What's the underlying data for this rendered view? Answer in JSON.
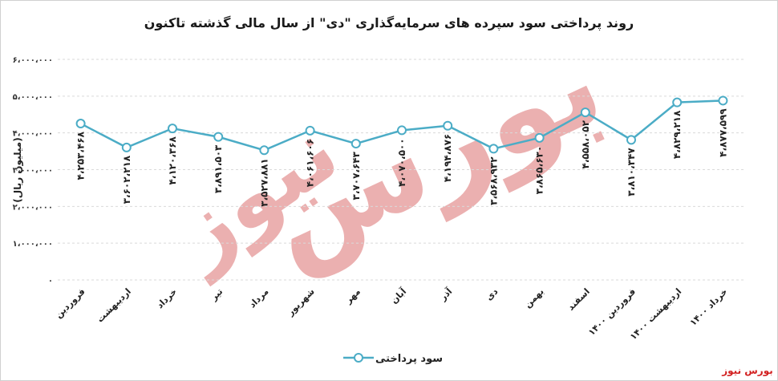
{
  "chart_data": {
    "type": "line",
    "title": "روند پرداختی سود سپرده های سرمایه‌گذاری \"دی\" از سال مالی گذشته تاکنون",
    "ylabel": "(میلیون ریال)",
    "ylim": [
      0,
      6000000
    ],
    "y_ticks": [
      0,
      1000000,
      2000000,
      3000000,
      4000000,
      5000000,
      6000000
    ],
    "y_tick_labels": [
      "۰",
      "۱،۰۰۰،۰۰۰",
      "۲،۰۰۰،۰۰۰",
      "۳،۰۰۰،۰۰۰",
      "۴،۰۰۰،۰۰۰",
      "۵،۰۰۰،۰۰۰",
      "۶،۰۰۰،۰۰۰"
    ],
    "categories": [
      "فروردین",
      "اردیبهشت",
      "خرداد",
      "تیر",
      "مرداد",
      "شهریور",
      "مهر",
      "آبان",
      "آذر",
      "دی",
      "بهمن",
      "اسفند",
      "فروردین ۱۴۰۰",
      "اردیبهشت ۱۴۰۰",
      "خرداد ۱۴۰۰"
    ],
    "series": [
      {
        "name": "سود پرداختی",
        "color": "#4bacc6",
        "values": [
          4253468,
          3602218,
          4120368,
          3891503,
          3527881,
          4061606,
          3707643,
          4070500,
          4194876,
          3568932,
          3865630,
          4558052,
          3810347,
          4829218,
          4877599
        ],
        "labels": [
          "۴،۲۵۳،۴۶۸",
          "۳،۶۰۲،۲۱۸",
          "۴،۱۲۰،۳۶۸",
          "۳،۸۹۱،۵۰۳",
          "۳،۵۲۷،۸۸۱",
          "۴،۰۶۱،۶۰۶",
          "۳،۷۰۷،۶۴۳",
          "۴،۰۷۰،۵۰۰",
          "۴،۱۹۴،۸۷۶",
          "۳،۵۶۸،۹۳۲",
          "۳،۸۶۵،۶۳۰",
          "۴،۵۵۸،۰۵۲",
          "۳،۸۱۰،۳۴۷",
          "۴،۸۲۹،۲۱۸",
          "۴،۸۷۷،۵۹۹"
        ]
      }
    ],
    "grid": true,
    "legend_position": "bottom"
  },
  "watermark_text": "بورس نیوز",
  "brand_text": "بورس نیوز",
  "colors": {
    "line": "#4bacc6",
    "marker_fill": "#ffffff",
    "grid": "#d9d9d9",
    "watermark": "#e8a3a3",
    "brand": "#d21f1f"
  }
}
